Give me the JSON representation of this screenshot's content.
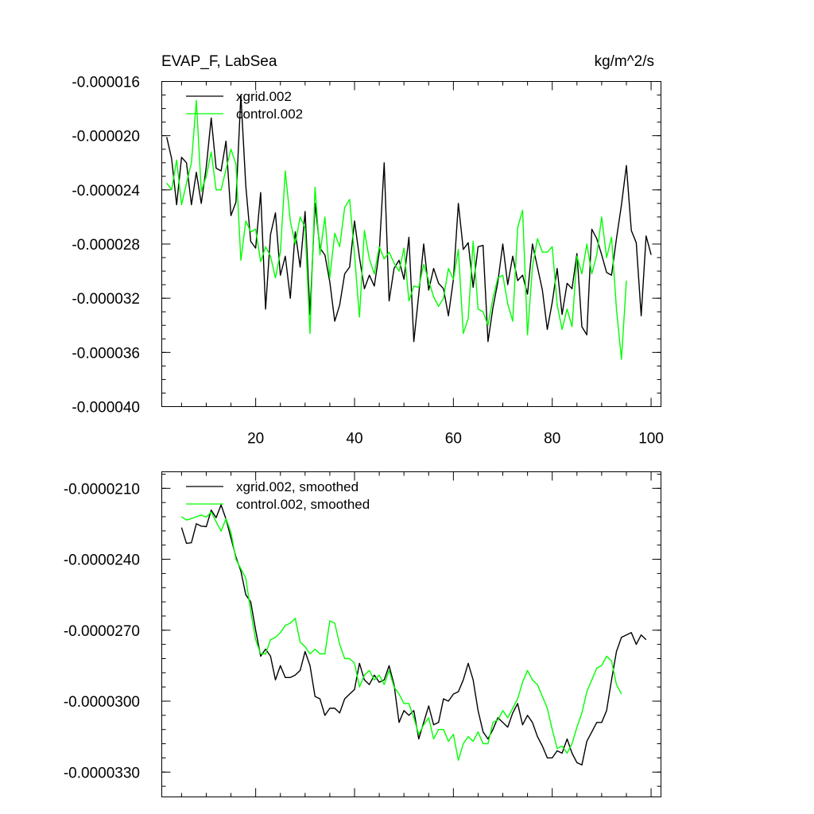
{
  "chart_data": [
    {
      "type": "line",
      "title": "EVAP_F, LabSea",
      "units": "kg/m^2/s",
      "xlim": [
        1,
        102
      ],
      "ylim": [
        -4e-05,
        -1.6e-05
      ],
      "x_ticks": [
        20,
        40,
        60,
        80,
        100
      ],
      "x_tick_labels": [
        "20",
        "40",
        "60",
        "80",
        "100"
      ],
      "y_ticks": [
        -1.6e-05,
        -2e-05,
        -2.4e-05,
        -2.8e-05,
        -3.2e-05,
        -3.6e-05,
        -4e-05
      ],
      "y_tick_labels": [
        "-0.000016",
        "-0.000020",
        "-0.000024",
        "-0.000028",
        "-0.000032",
        "-0.000036",
        "-0.000040"
      ],
      "legend_position": "top-left",
      "series": [
        {
          "name": "xgrid.002",
          "color": "#000000",
          "x_start": 2,
          "values": [
            -2.01e-05,
            -2.17e-05,
            -2.51e-05,
            -2.16e-05,
            -2.2e-05,
            -2.51e-05,
            -2.27e-05,
            -2.5e-05,
            -2.23e-05,
            -1.87e-05,
            -2.24e-05,
            -2.26e-05,
            -2.04e-05,
            -2.59e-05,
            -2.49e-05,
            -1.7e-05,
            -2.37e-05,
            -2.78e-05,
            -2.83e-05,
            -2.42e-05,
            -3.28e-05,
            -2.73e-05,
            -2.57e-05,
            -3.03e-05,
            -2.89e-05,
            -3.2e-05,
            -2.71e-05,
            -2.97e-05,
            -2.56e-05,
            -3.32e-05,
            -2.5e-05,
            -2.83e-05,
            -2.88e-05,
            -3.08e-05,
            -3.37e-05,
            -3.25e-05,
            -3.02e-05,
            -2.97e-05,
            -2.63e-05,
            -2.9e-05,
            -3.13e-05,
            -3.03e-05,
            -3.11e-05,
            -2.86e-05,
            -2.2e-05,
            -3.22e-05,
            -2.98e-05,
            -2.92e-05,
            -3.06e-05,
            -2.75e-05,
            -3.52e-05,
            -3.17e-05,
            -2.8e-05,
            -3.14e-05,
            -2.98e-05,
            -3.09e-05,
            -3.13e-05,
            -3.33e-05,
            -3.06e-05,
            -2.5e-05,
            -2.84e-05,
            -2.79e-05,
            -3.12e-05,
            -2.82e-05,
            -2.81e-05,
            -3.52e-05,
            -3.27e-05,
            -3.08e-05,
            -2.8e-05,
            -3.1e-05,
            -2.89e-05,
            -3.07e-05,
            -3.03e-05,
            -3.17e-05,
            -2.8e-05,
            -2.97e-05,
            -3.14e-05,
            -3.43e-05,
            -3.23e-05,
            -2.98e-05,
            -3.32e-05,
            -3.09e-05,
            -3.13e-05,
            -2.87e-05,
            -3.41e-05,
            -3.47e-05,
            -2.69e-05,
            -2.76e-05,
            -2.88e-05,
            -3.01e-05,
            -3.03e-05,
            -2.76e-05,
            -2.51e-05,
            -2.22e-05,
            -2.7e-05,
            -2.79e-05,
            -3.33e-05,
            -2.74e-05,
            -2.88e-05
          ]
        },
        {
          "name": "control.002",
          "color": "#00ff00",
          "x_start": 2,
          "values": [
            -2.35e-05,
            -2.4e-05,
            -2.18e-05,
            -2.51e-05,
            -2.35e-05,
            -2.2e-05,
            -1.74e-05,
            -2.41e-05,
            -2.3e-05,
            -2.12e-05,
            -2.4e-05,
            -2.4e-05,
            -2.25e-05,
            -2.1e-05,
            -2.21e-05,
            -2.92e-05,
            -2.63e-05,
            -2.71e-05,
            -2.69e-05,
            -2.93e-05,
            -2.82e-05,
            -2.89e-05,
            -3.05e-05,
            -2.86e-05,
            -2.26e-05,
            -2.63e-05,
            -2.8e-05,
            -2.6e-05,
            -2.68e-05,
            -3.46e-05,
            -2.38e-05,
            -2.88e-05,
            -2.6e-05,
            -3.05e-05,
            -2.72e-05,
            -2.82e-05,
            -2.53e-05,
            -2.47e-05,
            -2.88e-05,
            -3.34e-05,
            -2.7e-05,
            -2.91e-05,
            -3.02e-05,
            -2.82e-05,
            -2.91e-05,
            -2.86e-05,
            -2.94e-05,
            -3e-05,
            -2.83e-05,
            -3.22e-05,
            -3.11e-05,
            -3.12e-05,
            -2.95e-05,
            -3.07e-05,
            -3.19e-05,
            -3.26e-05,
            -3.2e-05,
            -2.98e-05,
            -3.06e-05,
            -2.84e-05,
            -3.46e-05,
            -3.35e-05,
            -2.78e-05,
            -3.28e-05,
            -3.3e-05,
            -3.4e-05,
            -3.2e-05,
            -3.05e-05,
            -3.03e-05,
            -3.24e-05,
            -3.37e-05,
            -2.68e-05,
            -2.55e-05,
            -3.47e-05,
            -2.97e-05,
            -2.76e-05,
            -2.86e-05,
            -2.86e-05,
            -2.82e-05,
            -3.25e-05,
            -3.43e-05,
            -3.28e-05,
            -3.41e-05,
            -2.89e-05,
            -3.02e-05,
            -2.8e-05,
            -3.02e-05,
            -2.88e-05,
            -2.6e-05,
            -2.9e-05,
            -2.75e-05,
            -3.28e-05,
            -3.65e-05,
            -3.07e-05
          ]
        }
      ]
    },
    {
      "type": "line",
      "title": "",
      "xlim": [
        1,
        102
      ],
      "ylim": [
        -3.405e-05,
        -2.03e-05
      ],
      "x_ticks": [
        20,
        40,
        60,
        80,
        100
      ],
      "x_tick_labels": [],
      "y_ticks": [
        -2.1e-05,
        -2.4e-05,
        -2.7e-05,
        -3e-05,
        -3.3e-05
      ],
      "y_tick_labels": [
        "-0.0000210",
        "-0.0000240",
        "-0.0000270",
        "-0.0000300",
        "-0.0000330"
      ],
      "legend_position": "top-left",
      "series": [
        {
          "name": "xgrid.002, smoothed",
          "color": "#000000",
          "x_start": 5,
          "values": [
            -2.266e-05,
            -2.333e-05,
            -2.33e-05,
            -2.25e-05,
            -2.26e-05,
            -2.262e-05,
            -2.192e-05,
            -2.224e-05,
            -2.17e-05,
            -2.23e-05,
            -2.31e-05,
            -2.39e-05,
            -2.45e-05,
            -2.55e-05,
            -2.58e-05,
            -2.7e-05,
            -2.81e-05,
            -2.78e-05,
            -2.81e-05,
            -2.91e-05,
            -2.85e-05,
            -2.9e-05,
            -2.9e-05,
            -2.89e-05,
            -2.87e-05,
            -2.79e-05,
            -2.85e-05,
            -2.98e-05,
            -2.99e-05,
            -3.06e-05,
            -3.03e-05,
            -3.03e-05,
            -3.05e-05,
            -2.99e-05,
            -2.97e-05,
            -2.95e-05,
            -2.84e-05,
            -2.91e-05,
            -2.93e-05,
            -2.89e-05,
            -2.92e-05,
            -2.91e-05,
            -2.85e-05,
            -2.93e-05,
            -3.09e-05,
            -3.04e-05,
            -3.06e-05,
            -3.04e-05,
            -3.16e-05,
            -3.09e-05,
            -3.02e-05,
            -3.1e-05,
            -3.09e-05,
            -2.99e-05,
            -3e-05,
            -2.97e-05,
            -2.96e-05,
            -2.91e-05,
            -2.84e-05,
            -2.91e-05,
            -3.04e-05,
            -3.13e-05,
            -3.16e-05,
            -3.12e-05,
            -3.07e-05,
            -3.09e-05,
            -3.11e-05,
            -3.05e-05,
            -3.01e-05,
            -3.1e-05,
            -3.06e-05,
            -3.09e-05,
            -3.15e-05,
            -3.19e-05,
            -3.24e-05,
            -3.24e-05,
            -3.21e-05,
            -3.22e-05,
            -3.16e-05,
            -3.22e-05,
            -3.26e-05,
            -3.27e-05,
            -3.17e-05,
            -3.13e-05,
            -3.09e-05,
            -3.09e-05,
            -3.04e-05,
            -2.91e-05,
            -2.79e-05,
            -2.73e-05,
            -2.72e-05,
            -2.71e-05,
            -2.76e-05,
            -2.72e-05,
            -2.74e-05
          ]
        },
        {
          "name": "control.002, smoothed",
          "color": "#00ff00",
          "x_start": 5,
          "values": [
            -2.22e-05,
            -2.234e-05,
            -2.228e-05,
            -2.22e-05,
            -2.213e-05,
            -2.222e-05,
            -2.2e-05,
            -2.241e-05,
            -2.281e-05,
            -2.228e-05,
            -2.286e-05,
            -2.4e-05,
            -2.44e-05,
            -2.48e-05,
            -2.62e-05,
            -2.74e-05,
            -2.8e-05,
            -2.8e-05,
            -2.74e-05,
            -2.73e-05,
            -2.71e-05,
            -2.68e-05,
            -2.67e-05,
            -2.65e-05,
            -2.75e-05,
            -2.77e-05,
            -2.8e-05,
            -2.78e-05,
            -2.8e-05,
            -2.8e-05,
            -2.66e-05,
            -2.67e-05,
            -2.76e-05,
            -2.82e-05,
            -2.82e-05,
            -2.84e-05,
            -2.94e-05,
            -2.89e-05,
            -2.87e-05,
            -2.91e-05,
            -2.89e-05,
            -2.93e-05,
            -2.87e-05,
            -2.94e-05,
            -2.97e-05,
            -3.01e-05,
            -3.01e-05,
            -3.07e-05,
            -3.14e-05,
            -3.1e-05,
            -3.07e-05,
            -3.16e-05,
            -3.12e-05,
            -3.12e-05,
            -3.17e-05,
            -3.14e-05,
            -3.25e-05,
            -3.18e-05,
            -3.15e-05,
            -3.17e-05,
            -3.13e-05,
            -3.18e-05,
            -3.18e-05,
            -3.09e-05,
            -3.08e-05,
            -3.04e-05,
            -3.07e-05,
            -3.03e-05,
            -2.99e-05,
            -2.92e-05,
            -2.87e-05,
            -2.91e-05,
            -2.93e-05,
            -2.98e-05,
            -3.03e-05,
            -3.12e-05,
            -3.2e-05,
            -3.19e-05,
            -3.22e-05,
            -3.18e-05,
            -3.11e-05,
            -3.05e-05,
            -2.96e-05,
            -2.91e-05,
            -2.86e-05,
            -2.85e-05,
            -2.81e-05,
            -2.83e-05,
            -2.93e-05,
            -2.97e-05
          ]
        }
      ]
    }
  ]
}
